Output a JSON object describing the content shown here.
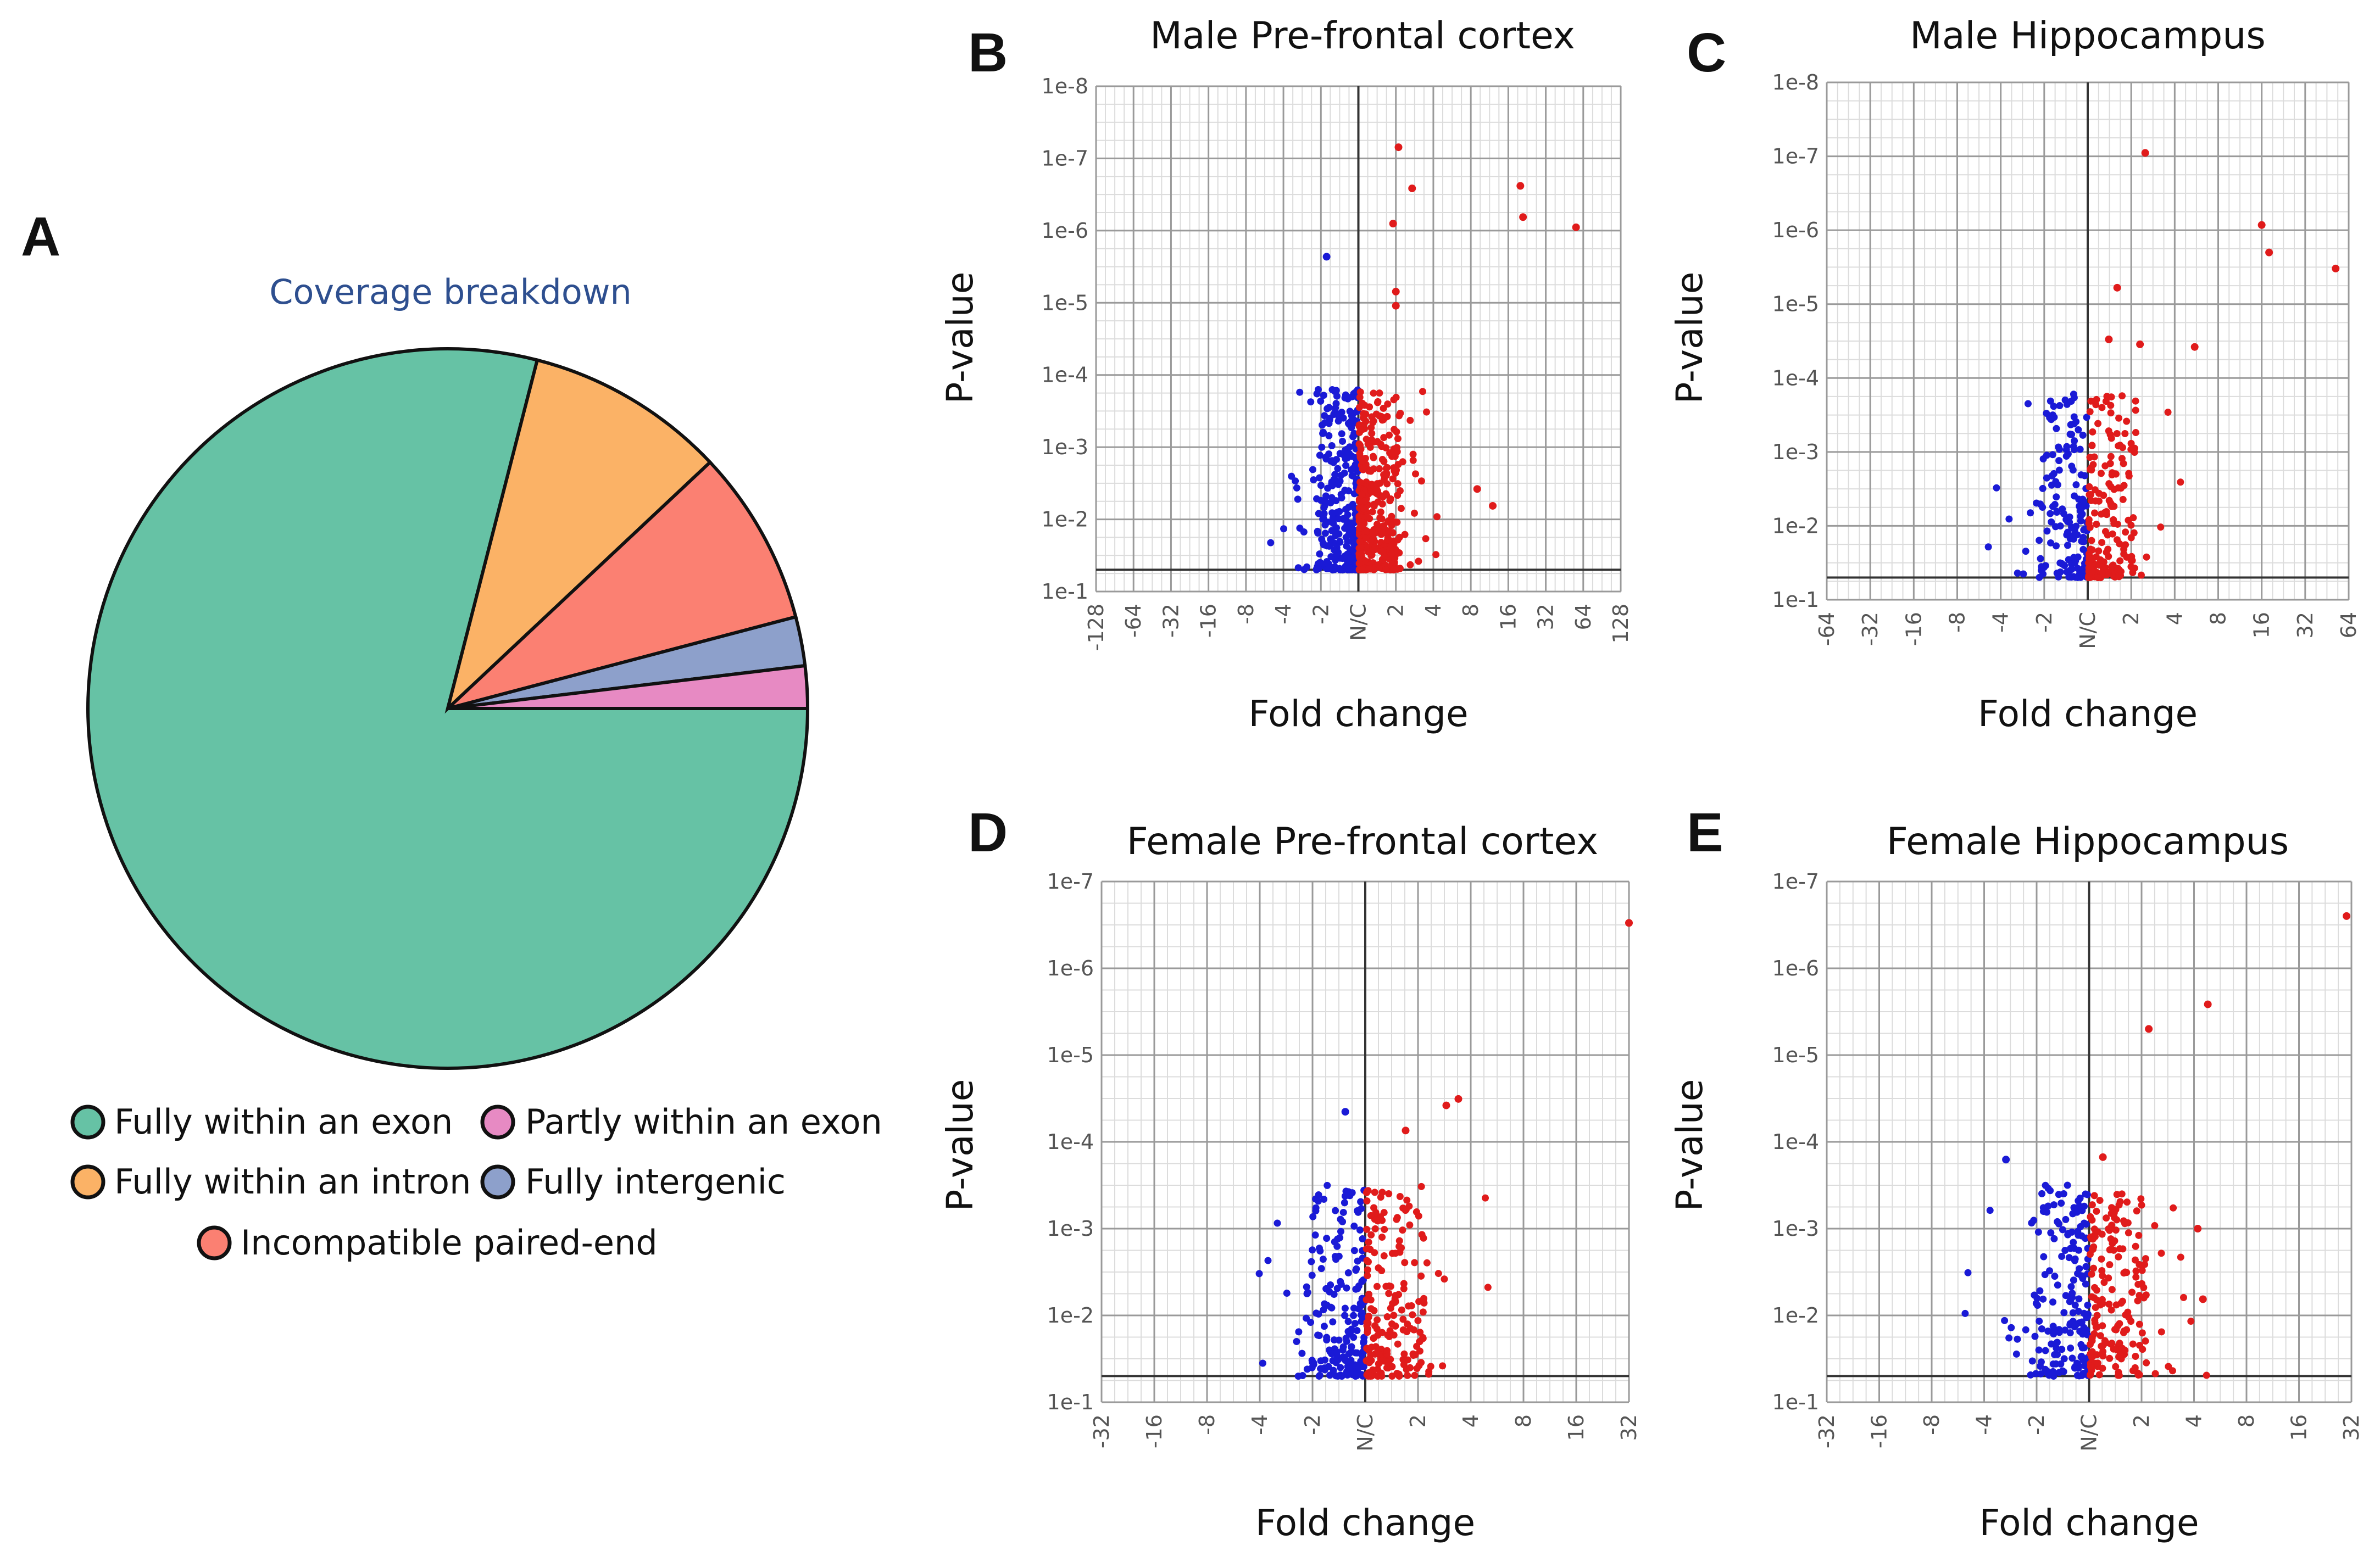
{
  "colors": {
    "down": "#1a1ad6",
    "up": "#e01b1b",
    "grid_major": "#9a9a9a",
    "grid_minor": "#dcdcdc",
    "axis": "#555555",
    "pie_title": "#2e4f8f"
  },
  "panel_A": {
    "letter": "A",
    "chart_data": {
      "type": "pie",
      "title": "Coverage breakdown",
      "slices": [
        {
          "label": "Fully within an exon",
          "value": 79.0,
          "color": "#66c2a5"
        },
        {
          "label": "Fully within an intron",
          "value": 9.0,
          "color": "#fbb266"
        },
        {
          "label": "Incompatible paired-end",
          "value": 7.9,
          "color": "#fb8072"
        },
        {
          "label": "Fully intergenic",
          "value": 2.2,
          "color": "#8da0cb"
        },
        {
          "label": "Partly within an exon",
          "value": 1.9,
          "color": "#e78ac3"
        }
      ]
    }
  },
  "volcano_panels": [
    {
      "letter": "B",
      "chart_data": {
        "type": "scatter",
        "title": "Male Pre-frontal cortex",
        "xlabel": "Fold change",
        "ylabel": "P-value",
        "x_ticks": [
          "-128",
          "-64",
          "-32",
          "-16",
          "-8",
          "-4",
          "-2",
          "N/C",
          "2",
          "4",
          "8",
          "16",
          "32",
          "64",
          "128"
        ],
        "y_ticks": [
          "1e-8",
          "1e-7",
          "1e-6",
          "1e-5",
          "1e-4",
          "1e-3",
          "1e-2",
          "1e-1"
        ],
        "xlim": [
          -128,
          128
        ],
        "ylim_log10": [
          -8,
          -1
        ],
        "threshold_p": 0.05,
        "n_down": 320,
        "n_up": 360,
        "highlighted_points": [
          {
            "fc": 2.1,
            "p": 7e-08
          },
          {
            "fc": 2.7,
            "p": 2.6e-07
          },
          {
            "fc": 20,
            "p": 2.4e-07
          },
          {
            "fc": 21,
            "p": 6.5e-07
          },
          {
            "fc": 56,
            "p": 9e-07
          },
          {
            "fc": 1.9,
            "p": 8e-07
          },
          {
            "fc": 2.0,
            "p": 7e-06
          },
          {
            "fc": 2.0,
            "p": 1.1e-05
          },
          {
            "fc": -1.8,
            "p": 2.3e-06
          },
          {
            "fc": 12,
            "p": 0.0065
          },
          {
            "fc": 9,
            "p": 0.0038
          }
        ]
      }
    },
    {
      "letter": "C",
      "chart_data": {
        "type": "scatter",
        "title": "Male Hippocampus",
        "xlabel": "Fold change",
        "ylabel": "P-value",
        "x_ticks": [
          "-64",
          "-32",
          "-16",
          "-8",
          "-4",
          "-2",
          "N/C",
          "2",
          "4",
          "8",
          "16",
          "32",
          "64"
        ],
        "y_ticks": [
          "1e-8",
          "1e-7",
          "1e-6",
          "1e-5",
          "1e-4",
          "1e-3",
          "1e-2",
          "1e-1"
        ],
        "xlim": [
          -64,
          64
        ],
        "ylim_log10": [
          -8,
          -1
        ],
        "threshold_p": 0.05,
        "n_down": 160,
        "n_up": 180,
        "highlighted_points": [
          {
            "fc": 2.5,
            "p": 9e-08
          },
          {
            "fc": 16,
            "p": 8.5e-07
          },
          {
            "fc": 18,
            "p": 2e-06
          },
          {
            "fc": 52,
            "p": 3.3e-06
          },
          {
            "fc": 1.6,
            "p": 6e-06
          },
          {
            "fc": 5.5,
            "p": 3.8e-05
          },
          {
            "fc": 1.4,
            "p": 3e-05
          },
          {
            "fc": 2.3,
            "p": 3.5e-05
          }
        ]
      }
    },
    {
      "letter": "D",
      "chart_data": {
        "type": "scatter",
        "title": "Female Pre-frontal cortex",
        "xlabel": "Fold change",
        "ylabel": "P-value",
        "x_ticks": [
          "-32",
          "-16",
          "-8",
          "-4",
          "-2",
          "N/C",
          "2",
          "4",
          "8",
          "16",
          "32"
        ],
        "y_ticks": [
          "1e-7",
          "1e-6",
          "1e-5",
          "1e-4",
          "1e-3",
          "1e-2",
          "1e-1"
        ],
        "xlim": [
          -32,
          32
        ],
        "ylim_log10": [
          -7,
          -1
        ],
        "threshold_p": 0.05,
        "n_down": 200,
        "n_up": 190,
        "highlighted_points": [
          {
            "fc": 32,
            "p": 3e-07
          },
          {
            "fc": 3.4,
            "p": 3.2e-05
          },
          {
            "fc": 2.9,
            "p": 3.8e-05
          },
          {
            "fc": 1.7,
            "p": 7.4e-05
          },
          {
            "fc": -1.3,
            "p": 4.5e-05
          }
        ]
      }
    },
    {
      "letter": "E",
      "chart_data": {
        "type": "scatter",
        "title": "Female Hippocampus",
        "xlabel": "Fold change",
        "ylabel": "P-value",
        "x_ticks": [
          "-32",
          "-16",
          "-8",
          "-4",
          "-2",
          "N/C",
          "2",
          "4",
          "8",
          "16",
          "32"
        ],
        "y_ticks": [
          "1e-7",
          "1e-6",
          "1e-5",
          "1e-4",
          "1e-3",
          "1e-2",
          "1e-1"
        ],
        "xlim": [
          -32,
          32
        ],
        "ylim_log10": [
          -7,
          -1
        ],
        "threshold_p": 0.05,
        "n_down": 180,
        "n_up": 180,
        "highlighted_points": [
          {
            "fc": 30,
            "p": 2.5e-07
          },
          {
            "fc": 4.8,
            "p": 2.6e-06
          },
          {
            "fc": 2.2,
            "p": 5e-06
          },
          {
            "fc": 1.2,
            "p": 0.00015
          },
          {
            "fc": -3,
            "p": 0.00016
          },
          {
            "fc": 4.2,
            "p": 0.001
          },
          {
            "fc": 4.5,
            "p": 0.0065
          }
        ]
      }
    }
  ]
}
